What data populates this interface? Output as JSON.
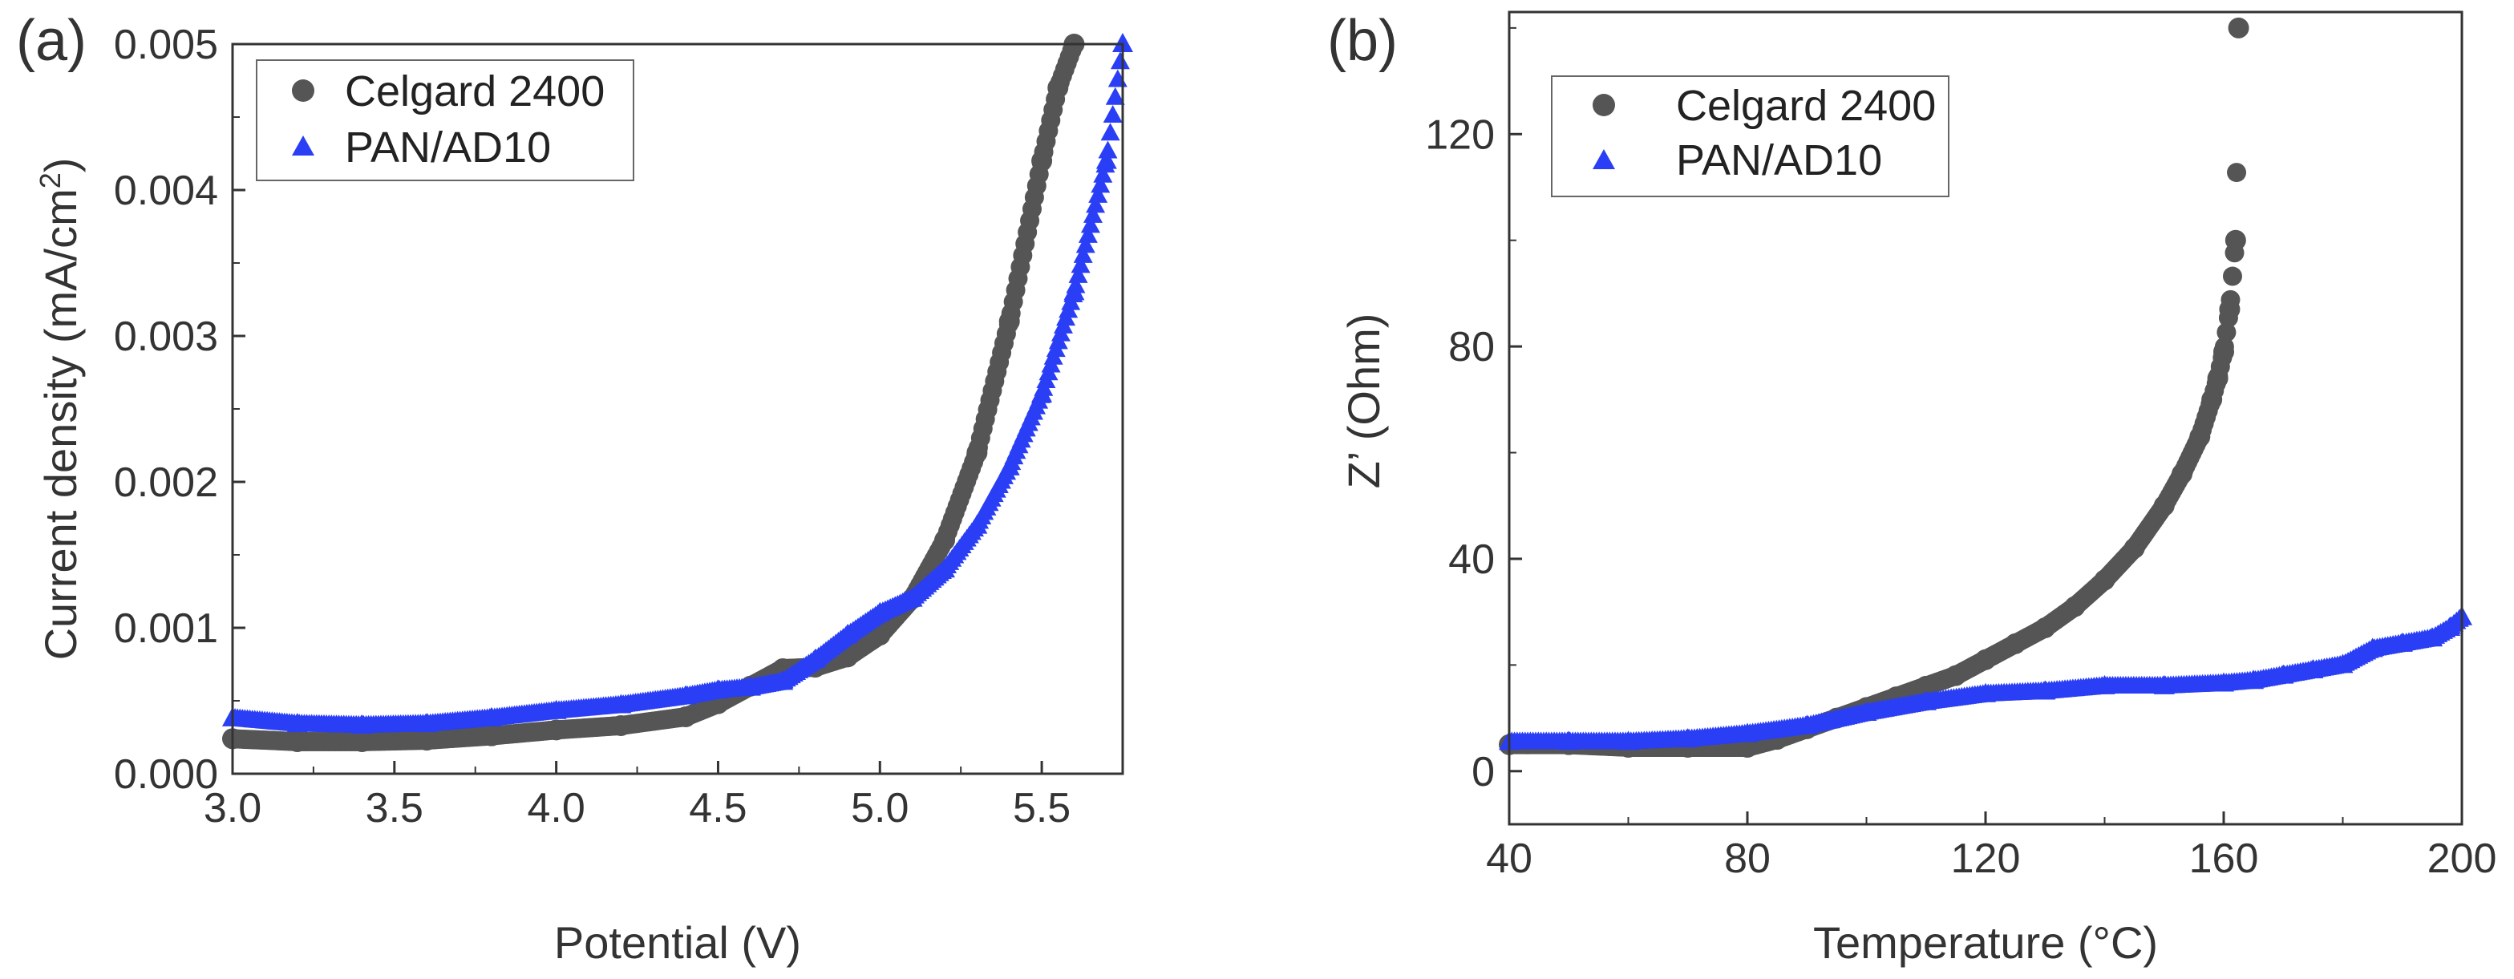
{
  "colors": {
    "celgard": "#555555",
    "pan": "#2a3ff5",
    "axis": "#333333"
  },
  "chart_data": [
    {
      "panel": "(a)",
      "type": "scatter",
      "title": "",
      "xlabel": "Potential (V)",
      "ylabel_main": "Current density (mA/cm",
      "ylabel_sup": "2",
      "ylabel_end": ")",
      "xlim": [
        3.0,
        5.75
      ],
      "ylim": [
        0.0,
        0.005
      ],
      "xticks": [
        3.0,
        3.5,
        4.0,
        4.5,
        5.0,
        5.5
      ],
      "xtick_labels": [
        "3.0",
        "3.5",
        "4.0",
        "4.5",
        "5.0",
        "5.5"
      ],
      "yticks": [
        0.0,
        0.001,
        0.002,
        0.003,
        0.004,
        0.005
      ],
      "ytick_labels": [
        "0.000",
        "0.001",
        "0.002",
        "0.003",
        "0.004",
        "0.005"
      ],
      "legend_position": "top-left",
      "series": [
        {
          "name": "Celgard 2400",
          "marker": "circle",
          "color": "#555555",
          "x": [
            3.0,
            3.2,
            3.4,
            3.6,
            3.8,
            4.0,
            4.2,
            4.4,
            4.5,
            4.6,
            4.7,
            4.8,
            4.9,
            5.0,
            5.1,
            5.2,
            5.3,
            5.4,
            5.5,
            5.55,
            5.6
          ],
          "y": [
            0.00024,
            0.00022,
            0.00022,
            0.00023,
            0.00026,
            0.0003,
            0.00033,
            0.00039,
            0.00048,
            0.0006,
            0.00072,
            0.00073,
            0.0008,
            0.00095,
            0.0012,
            0.0016,
            0.0022,
            0.0031,
            0.0042,
            0.0047,
            0.005
          ]
        },
        {
          "name": "PAN/AD10",
          "marker": "triangle",
          "color": "#2a3ff5",
          "x": [
            3.0,
            3.2,
            3.4,
            3.6,
            3.8,
            4.0,
            4.2,
            4.4,
            4.5,
            4.6,
            4.7,
            4.8,
            4.9,
            5.0,
            5.1,
            5.2,
            5.3,
            5.4,
            5.5,
            5.6,
            5.7,
            5.75
          ],
          "y": [
            0.00038,
            0.00034,
            0.00033,
            0.00034,
            0.00038,
            0.00043,
            0.00047,
            0.00053,
            0.00057,
            0.00059,
            0.00063,
            0.00078,
            0.00095,
            0.0011,
            0.0012,
            0.0014,
            0.0017,
            0.0021,
            0.0026,
            0.0033,
            0.0042,
            0.005
          ]
        }
      ]
    },
    {
      "panel": "(b)",
      "type": "scatter",
      "title": "",
      "xlabel": "Temperature (°C)",
      "ylabel": "Z’ (Ohm)",
      "xlim": [
        40,
        200
      ],
      "ylim": [
        -10,
        143
      ],
      "xticks": [
        40,
        80,
        120,
        160,
        200
      ],
      "xtick_labels": [
        "40",
        "80",
        "120",
        "160",
        "200"
      ],
      "yticks": [
        0,
        40,
        80,
        120
      ],
      "ytick_labels": [
        "0",
        "40",
        "80",
        "120"
      ],
      "legend_position": "top-left",
      "series": [
        {
          "name": "Celgard 2400",
          "marker": "circle",
          "color": "#555555",
          "x": [
            40,
            50,
            60,
            70,
            80,
            85,
            90,
            95,
            100,
            105,
            110,
            115,
            120,
            125,
            130,
            135,
            140,
            145,
            150,
            153,
            156,
            158,
            159,
            160,
            161,
            162,
            162.5
          ],
          "y": [
            5,
            5,
            4.5,
            4.5,
            4.5,
            6,
            8,
            10,
            12,
            14,
            16,
            18,
            21,
            24,
            27,
            31,
            36,
            42,
            50,
            56,
            63,
            70,
            74,
            79,
            87,
            100,
            140
          ]
        },
        {
          "name": "PAN/AD10",
          "marker": "triangle",
          "color": "#2a3ff5",
          "x": [
            40,
            50,
            60,
            70,
            80,
            90,
            100,
            110,
            120,
            130,
            140,
            150,
            160,
            165,
            170,
            175,
            180,
            185,
            190,
            195,
            198,
            200
          ],
          "y": [
            5.5,
            5.5,
            5.5,
            6,
            7,
            8.5,
            11,
            13,
            14.5,
            15,
            16,
            16,
            16.5,
            17,
            18,
            19,
            20,
            23,
            24,
            25,
            27,
            29
          ]
        }
      ]
    }
  ]
}
